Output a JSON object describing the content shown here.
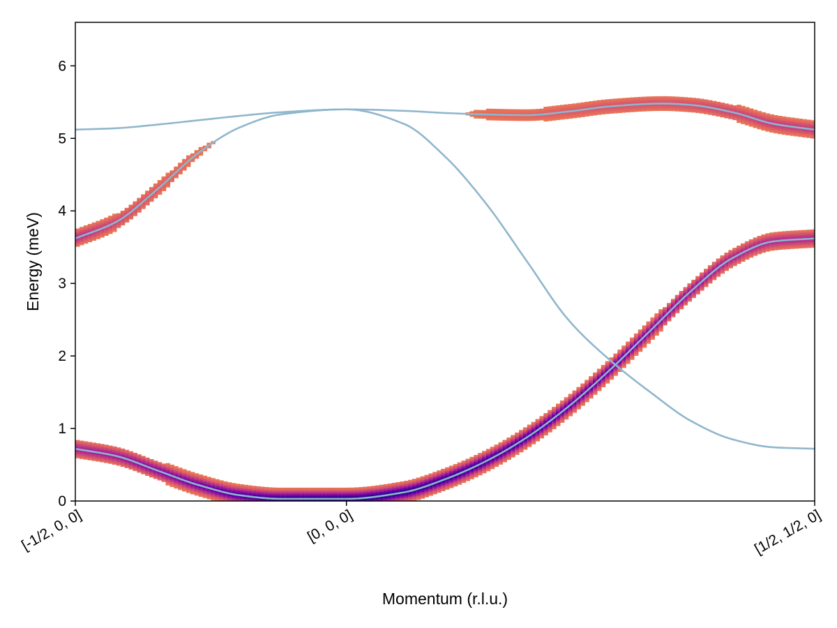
{
  "chart_data": {
    "type": "line",
    "title": "",
    "xlabel": "Momentum (r.l.u.)",
    "ylabel": "Energy (meV)",
    "xlim": [
      0,
      1.8
    ],
    "ylim": [
      0,
      6.6
    ],
    "grid": false,
    "x_ticks": [
      {
        "x": 0,
        "label": "[-1/2, 0, 0]"
      },
      {
        "x": 0.66,
        "label": "[0, 0, 0]"
      },
      {
        "x": 1.8,
        "label": "[1/2, 1/2, 0]"
      }
    ],
    "y_ticks": [
      0,
      1,
      2,
      3,
      4,
      5,
      6
    ],
    "line_color": "#8fb6cc",
    "intensity_colormap": [
      "#f0f921",
      "#fca636",
      "#e16462",
      "#b12a90",
      "#6a00a8",
      "#0d0887"
    ],
    "series": [
      {
        "x": [
          0,
          0.1,
          0.2,
          0.3,
          0.4,
          0.5,
          0.66,
          0.8,
          0.9,
          1.0,
          1.1,
          1.2,
          1.3,
          1.43,
          1.5,
          1.6,
          1.7,
          1.8
        ],
        "values": [
          5.12,
          5.14,
          5.19,
          5.25,
          5.31,
          5.36,
          5.4,
          5.38,
          5.35,
          5.33,
          5.32,
          5.37,
          5.44,
          5.48,
          5.46,
          5.36,
          5.2,
          5.12
        ],
        "intensity": [
          0,
          0,
          0,
          0,
          0,
          0,
          0,
          0,
          0,
          0.12,
          0.15,
          0.2,
          0.22,
          0.23,
          0.25,
          0.3,
          0.35,
          0.35
        ]
      },
      {
        "x": [
          0,
          0.1,
          0.2,
          0.3,
          0.4,
          0.5,
          0.66,
          0.8,
          0.9,
          1.0,
          1.1,
          1.2,
          1.3,
          1.4,
          1.5,
          1.6,
          1.7,
          1.8
        ],
        "values": [
          3.62,
          3.85,
          4.3,
          4.8,
          5.15,
          5.33,
          5.4,
          5.2,
          4.75,
          4.1,
          3.3,
          2.5,
          1.95,
          1.5,
          1.1,
          0.85,
          0.74,
          0.72
        ],
        "intensity": [
          0.42,
          0.3,
          0.2,
          0.1,
          0,
          0,
          0,
          0,
          0,
          0,
          0,
          0,
          0,
          0,
          0,
          0,
          0,
          0
        ]
      },
      {
        "x": [
          0,
          0.1,
          0.2,
          0.3,
          0.4,
          0.5,
          0.66,
          0.8,
          0.9,
          1.0,
          1.1,
          1.2,
          1.3,
          1.4,
          1.5,
          1.6,
          1.7,
          1.8
        ],
        "values": [
          0.72,
          0.62,
          0.42,
          0.22,
          0.08,
          0.03,
          0.03,
          0.12,
          0.3,
          0.55,
          0.88,
          1.3,
          1.8,
          2.35,
          2.9,
          3.35,
          3.58,
          3.62
        ],
        "intensity": [
          0.5,
          0.55,
          0.65,
          0.75,
          0.85,
          0.95,
          1.0,
          0.98,
          0.95,
          0.92,
          0.9,
          0.85,
          0.8,
          0.7,
          0.6,
          0.5,
          0.45,
          0.45
        ]
      }
    ]
  }
}
